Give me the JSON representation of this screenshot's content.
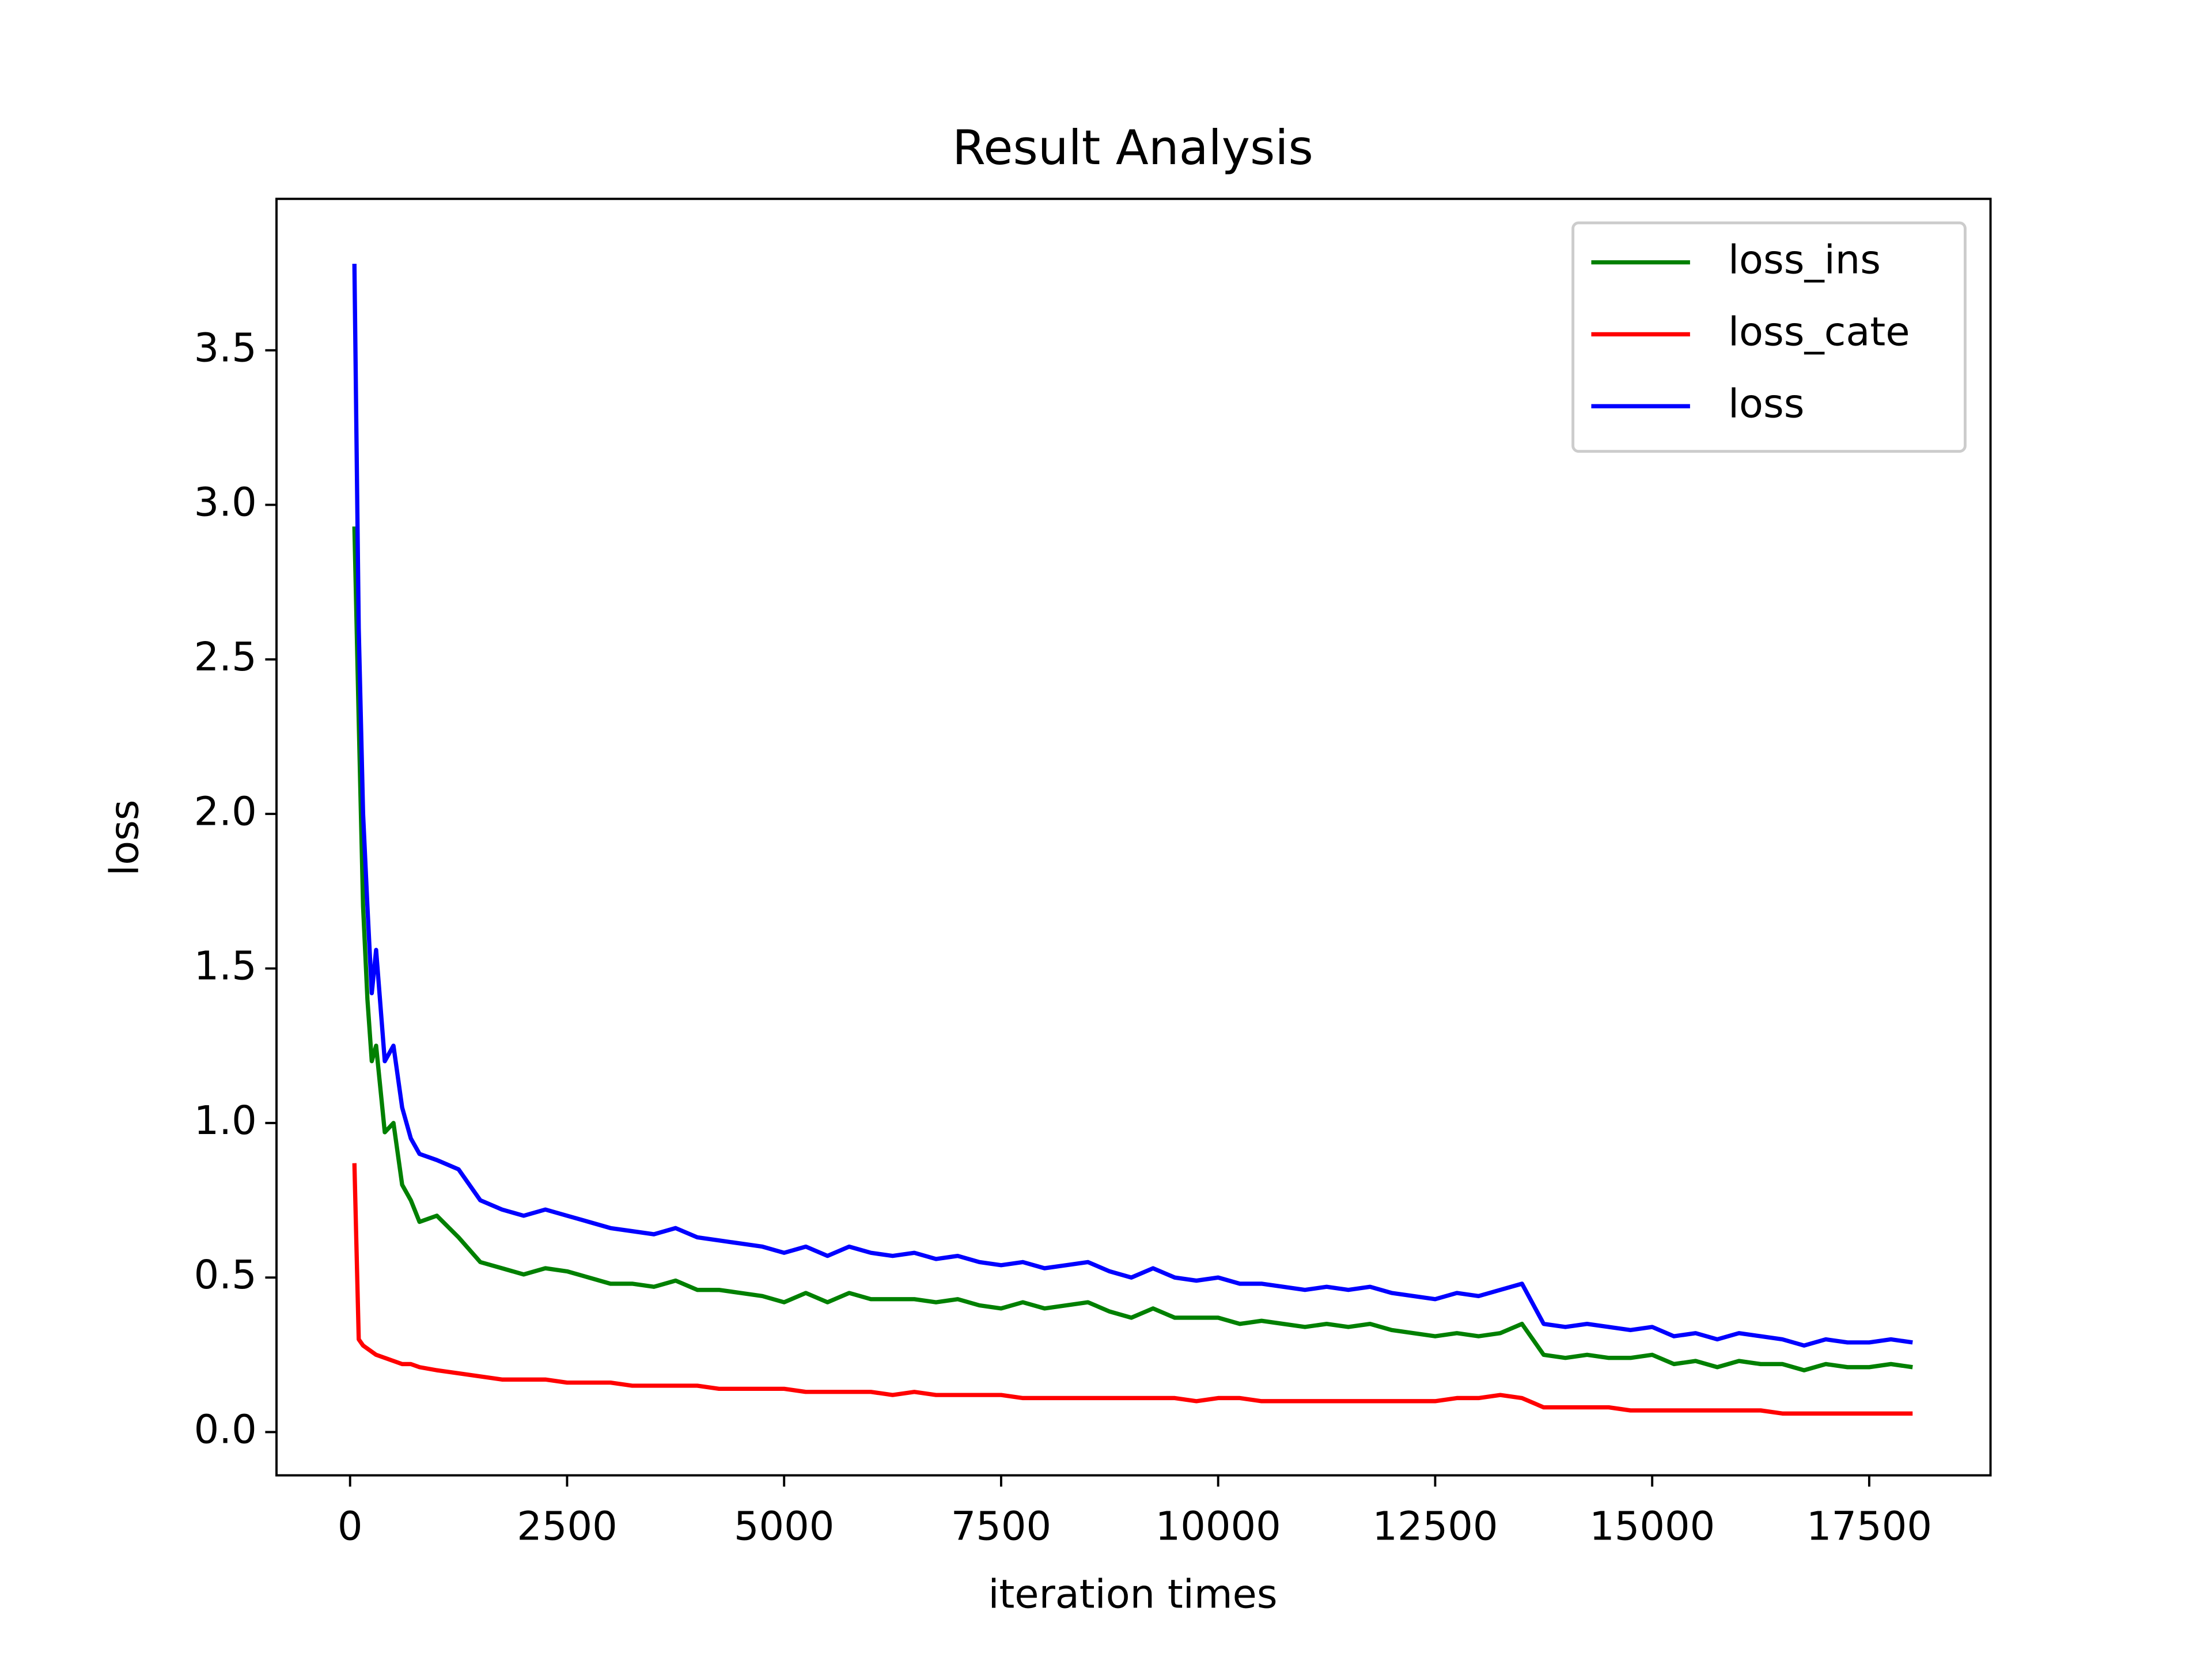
{
  "chart_data": {
    "type": "line",
    "title": "Result Analysis",
    "x_label": "iteration times",
    "y_label": "loss",
    "x": [
      50,
      100,
      150,
      200,
      250,
      300,
      400,
      500,
      600,
      700,
      800,
      1000,
      1250,
      1500,
      1750,
      2000,
      2250,
      2500,
      2750,
      3000,
      3250,
      3500,
      3750,
      4000,
      4250,
      4500,
      4750,
      5000,
      5250,
      5500,
      5750,
      6000,
      6250,
      6500,
      6750,
      7000,
      7250,
      7500,
      7750,
      8000,
      8250,
      8500,
      8750,
      9000,
      9250,
      9500,
      9750,
      10000,
      10250,
      10500,
      10750,
      11000,
      11250,
      11500,
      11750,
      12000,
      12250,
      12500,
      12750,
      13000,
      13250,
      13500,
      13750,
      14000,
      14250,
      14500,
      14750,
      15000,
      15250,
      15500,
      15750,
      16000,
      16250,
      16500,
      16750,
      17000,
      17250,
      17500,
      17750,
      18000
    ],
    "series": [
      {
        "name": "loss_ins",
        "color": "#008000",
        "values": [
          2.93,
          2.3,
          1.7,
          1.4,
          1.2,
          1.25,
          0.97,
          1.0,
          0.8,
          0.75,
          0.68,
          0.7,
          0.63,
          0.55,
          0.53,
          0.51,
          0.53,
          0.52,
          0.5,
          0.48,
          0.48,
          0.47,
          0.49,
          0.46,
          0.46,
          0.45,
          0.44,
          0.42,
          0.45,
          0.42,
          0.45,
          0.43,
          0.43,
          0.43,
          0.42,
          0.43,
          0.41,
          0.4,
          0.42,
          0.4,
          0.41,
          0.42,
          0.39,
          0.37,
          0.4,
          0.37,
          0.37,
          0.37,
          0.35,
          0.36,
          0.35,
          0.34,
          0.35,
          0.34,
          0.35,
          0.33,
          0.32,
          0.31,
          0.32,
          0.31,
          0.32,
          0.35,
          0.25,
          0.24,
          0.25,
          0.24,
          0.24,
          0.25,
          0.22,
          0.23,
          0.21,
          0.23,
          0.22,
          0.22,
          0.2,
          0.22,
          0.21,
          0.21,
          0.22,
          0.21
        ]
      },
      {
        "name": "loss_cate",
        "color": "#ff0000",
        "values": [
          0.87,
          0.3,
          0.28,
          0.27,
          0.26,
          0.25,
          0.24,
          0.23,
          0.22,
          0.22,
          0.21,
          0.2,
          0.19,
          0.18,
          0.17,
          0.17,
          0.17,
          0.16,
          0.16,
          0.16,
          0.15,
          0.15,
          0.15,
          0.15,
          0.14,
          0.14,
          0.14,
          0.14,
          0.13,
          0.13,
          0.13,
          0.13,
          0.12,
          0.13,
          0.12,
          0.12,
          0.12,
          0.12,
          0.11,
          0.11,
          0.11,
          0.11,
          0.11,
          0.11,
          0.11,
          0.11,
          0.1,
          0.11,
          0.11,
          0.1,
          0.1,
          0.1,
          0.1,
          0.1,
          0.1,
          0.1,
          0.1,
          0.1,
          0.11,
          0.11,
          0.12,
          0.11,
          0.08,
          0.08,
          0.08,
          0.08,
          0.07,
          0.07,
          0.07,
          0.07,
          0.07,
          0.07,
          0.07,
          0.06,
          0.06,
          0.06,
          0.06,
          0.06,
          0.06,
          0.06
        ]
      },
      {
        "name": "loss",
        "color": "#0000ff",
        "values": [
          3.78,
          2.6,
          2.0,
          1.7,
          1.42,
          1.56,
          1.2,
          1.25,
          1.05,
          0.95,
          0.9,
          0.88,
          0.85,
          0.75,
          0.72,
          0.7,
          0.72,
          0.7,
          0.68,
          0.66,
          0.65,
          0.64,
          0.66,
          0.63,
          0.62,
          0.61,
          0.6,
          0.58,
          0.6,
          0.57,
          0.6,
          0.58,
          0.57,
          0.58,
          0.56,
          0.57,
          0.55,
          0.54,
          0.55,
          0.53,
          0.54,
          0.55,
          0.52,
          0.5,
          0.53,
          0.5,
          0.49,
          0.5,
          0.48,
          0.48,
          0.47,
          0.46,
          0.47,
          0.46,
          0.47,
          0.45,
          0.44,
          0.43,
          0.45,
          0.44,
          0.46,
          0.48,
          0.35,
          0.34,
          0.35,
          0.34,
          0.33,
          0.34,
          0.31,
          0.32,
          0.3,
          0.32,
          0.31,
          0.3,
          0.28,
          0.3,
          0.29,
          0.29,
          0.3,
          0.29
        ]
      }
    ],
    "xlim": [
      -847.5,
      18897.5
    ],
    "xticks": [
      0,
      2500,
      5000,
      7500,
      10000,
      12500,
      15000,
      17500
    ],
    "ylim": [
      -0.14,
      3.99
    ],
    "yticks": [
      {
        "value": 0,
        "label": "0.0"
      },
      0.5,
      {
        "value": 1,
        "label": "1.0"
      },
      1.5,
      {
        "value": 2,
        "label": "2.0"
      },
      2.5,
      {
        "value": 3,
        "label": "3.0"
      },
      3.5
    ],
    "legend": "upper right"
  }
}
